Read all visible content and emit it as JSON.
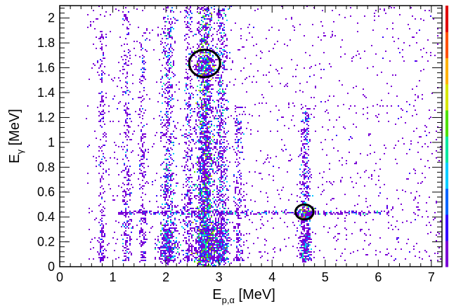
{
  "chart_data": {
    "type": "heatmap",
    "title": "",
    "xlabel": {
      "base": "E",
      "sub": "p,α",
      "unit": " [MeV]"
    },
    "ylabel": {
      "base": "E",
      "sub": "γ",
      "unit": " [MeV]"
    },
    "xlim": [
      0,
      7.2
    ],
    "ylim": [
      0,
      2.1
    ],
    "x_ticks": [
      {
        "value": 0,
        "label": "0"
      },
      {
        "value": 1,
        "label": "1"
      },
      {
        "value": 2,
        "label": "2"
      },
      {
        "value": 3,
        "label": "3"
      },
      {
        "value": 4,
        "label": "4"
      },
      {
        "value": 5,
        "label": "5"
      },
      {
        "value": 6,
        "label": "6"
      },
      {
        "value": 7,
        "label": "7"
      }
    ],
    "y_ticks": [
      {
        "value": 0,
        "label": "0"
      },
      {
        "value": 0.2,
        "label": "0.2"
      },
      {
        "value": 0.4,
        "label": "0.4"
      },
      {
        "value": 0.6,
        "label": "0.6"
      },
      {
        "value": 0.8,
        "label": "0.8"
      },
      {
        "value": 1.0,
        "label": "1"
      },
      {
        "value": 1.2,
        "label": "1.2"
      },
      {
        "value": 1.4,
        "label": "1.4"
      },
      {
        "value": 1.6,
        "label": "1.6"
      },
      {
        "value": 1.8,
        "label": "1.8"
      },
      {
        "value": 2.0,
        "label": "2"
      }
    ],
    "color_palette": [
      "#7a00d6",
      "#3300ff",
      "#0066ff",
      "#00ccff",
      "#00e6a0",
      "#4ee000",
      "#d6e600",
      "#ffb000",
      "#ff5000",
      "#e00000"
    ],
    "colorbar": {
      "position": "right"
    },
    "bands": [
      {
        "x": 0.78,
        "width": 0.06,
        "ymin": 0.05,
        "ymax": 1.9,
        "density": 0.25,
        "level": 0.15
      },
      {
        "x": 1.25,
        "width": 0.08,
        "ymin": 0.05,
        "ymax": 2.1,
        "density": 0.3,
        "level": 0.18
      },
      {
        "x": 1.55,
        "width": 0.06,
        "ymin": 0.05,
        "ymax": 1.9,
        "density": 0.25,
        "level": 0.15
      },
      {
        "x": 2.03,
        "width": 0.12,
        "ymin": 0.05,
        "ymax": 2.1,
        "density": 0.7,
        "level": 0.3
      },
      {
        "x": 2.42,
        "width": 0.1,
        "ymin": 0.05,
        "ymax": 2.1,
        "density": 0.45,
        "level": 0.22
      },
      {
        "x": 2.73,
        "width": 0.16,
        "ymin": 0.05,
        "ymax": 2.1,
        "density": 1.6,
        "level": 0.45
      },
      {
        "x": 3.03,
        "width": 0.12,
        "ymin": 0.05,
        "ymax": 2.1,
        "density": 0.8,
        "level": 0.3
      },
      {
        "x": 3.35,
        "width": 0.08,
        "ymin": 0.05,
        "ymax": 1.3,
        "density": 0.25,
        "level": 0.18
      },
      {
        "x": 4.62,
        "width": 0.09,
        "ymin": 0.05,
        "ymax": 1.3,
        "density": 0.45,
        "level": 0.25
      }
    ],
    "hotspots": [
      {
        "x": 2.73,
        "y": 1.63,
        "sx": 0.09,
        "sy": 0.05,
        "count": 220,
        "level": 0.5
      },
      {
        "x": 2.73,
        "y": 0.2,
        "sx": 0.12,
        "sy": 0.1,
        "count": 520,
        "level": 0.45
      },
      {
        "x": 2.03,
        "y": 0.2,
        "sx": 0.1,
        "sy": 0.09,
        "count": 260,
        "level": 0.35
      },
      {
        "x": 3.03,
        "y": 0.2,
        "sx": 0.09,
        "sy": 0.09,
        "count": 220,
        "level": 0.33
      },
      {
        "x": 4.62,
        "y": 0.44,
        "sx": 0.07,
        "sy": 0.025,
        "count": 90,
        "level": 0.55
      },
      {
        "x": 4.62,
        "y": 0.19,
        "sx": 0.06,
        "sy": 0.06,
        "count": 120,
        "level": 0.32
      },
      {
        "x": 2.73,
        "y": 0.8,
        "sx": 0.08,
        "sy": 0.35,
        "count": 400,
        "level": 0.35
      }
    ],
    "line_gamma_0_44": {
      "y": 0.44,
      "xmin": 1.1,
      "xmax": 6.2,
      "density": 0.8
    },
    "annotations": [
      {
        "type": "circle",
        "x": 2.73,
        "y": 1.635,
        "rx": 0.29,
        "ry": 0.11
      },
      {
        "type": "circle",
        "x": 4.61,
        "y": 0.44,
        "rx": 0.17,
        "ry": 0.06
      }
    ]
  }
}
